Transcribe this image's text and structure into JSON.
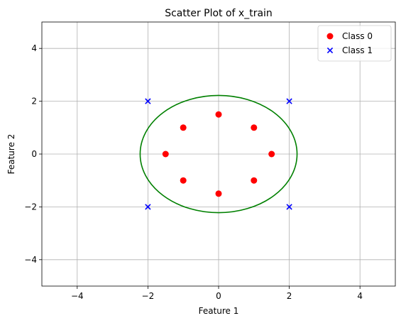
{
  "chart_data": {
    "type": "scatter",
    "title": "Scatter Plot of x_train",
    "xlabel": "Feature 1",
    "ylabel": "Feature 2",
    "xlim": [
      -5,
      5
    ],
    "ylim": [
      -5,
      5
    ],
    "xticks": [
      -4,
      -2,
      0,
      2,
      4
    ],
    "yticks": [
      -4,
      -2,
      0,
      2,
      4
    ],
    "xtick_labels": [
      "−4",
      "−2",
      "0",
      "2",
      "4"
    ],
    "ytick_labels": [
      "−4",
      "−2",
      "0",
      "2",
      "4"
    ],
    "grid": true,
    "legend_position": "top-right",
    "series": [
      {
        "name": "Class 0",
        "marker": "circle",
        "color": "#ff0000",
        "points": [
          [
            0,
            1.5
          ],
          [
            1,
            1
          ],
          [
            1.5,
            0
          ],
          [
            1,
            -1
          ],
          [
            0,
            -1.5
          ],
          [
            -1,
            -1
          ],
          [
            -1.5,
            0
          ],
          [
            -1,
            1
          ]
        ]
      },
      {
        "name": "Class 1",
        "marker": "x",
        "color": "#0000ff",
        "points": [
          [
            -2,
            2
          ],
          [
            2,
            2
          ],
          [
            -2,
            -2
          ],
          [
            2,
            -2
          ]
        ]
      }
    ],
    "boundary": {
      "shape": "circle",
      "center": [
        0,
        0
      ],
      "radius": 2.22,
      "color": "#008000"
    }
  }
}
